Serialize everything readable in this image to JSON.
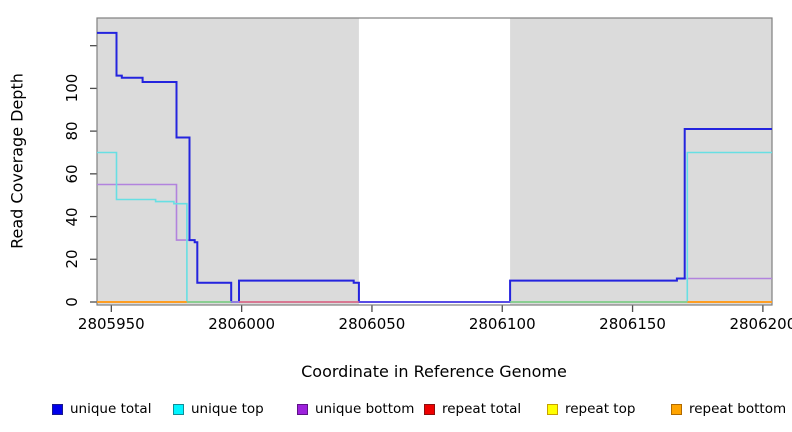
{
  "chart_data": {
    "type": "line",
    "subtype": "step-coverage-plot",
    "title": "",
    "xlabel": "Coordinate in Reference Genome",
    "ylabel": "Read Coverage Depth",
    "xlim": [
      2805944.5,
      2806203.5
    ],
    "ylim": [
      0,
      134
    ],
    "grid": "off",
    "panel_background": "#ffffff",
    "shaded_region_color": "#dbdbdb",
    "box_color": "#7f7f7f",
    "tick_color": "#4d4d4d",
    "x_ticks": [
      {
        "value": 2805950,
        "label": "2805950"
      },
      {
        "value": 2806000,
        "label": "2806000"
      },
      {
        "value": 2806050,
        "label": "2806050"
      },
      {
        "value": 2806100,
        "label": "2806100"
      },
      {
        "value": 2806150,
        "label": "2806150"
      },
      {
        "value": 2806200,
        "label": "2806200"
      }
    ],
    "y_ticks": [
      {
        "value": 0,
        "label": "0"
      },
      {
        "value": 20,
        "label": "20"
      },
      {
        "value": 40,
        "label": "40"
      },
      {
        "value": 60,
        "label": "60"
      },
      {
        "value": 80,
        "label": "80"
      },
      {
        "value": 100,
        "label": "100"
      },
      {
        "value": 120,
        "label": ""
      }
    ],
    "shaded_regions": [
      {
        "from": 2805944.5,
        "to": 2806045
      },
      {
        "from": 2806103,
        "to": 2806203.5
      }
    ],
    "series": [
      {
        "name": "repeat total",
        "color": "#ee0000",
        "width": 1.5,
        "points": [
          [
            2805944.5,
            0
          ],
          [
            2806203.5,
            0
          ]
        ]
      },
      {
        "name": "repeat top",
        "color": "#ffff00",
        "width": 1.5,
        "points": [
          [
            2805944.5,
            0
          ],
          [
            2806203.5,
            0
          ]
        ]
      },
      {
        "name": "repeat bottom",
        "color": "#ffa400",
        "width": 1.5,
        "points": [
          [
            2805944.5,
            0
          ],
          [
            2806203.5,
            0
          ]
        ]
      },
      {
        "name": "unique bottom",
        "color": "#b283dd",
        "width": 1.6,
        "points": [
          [
            2805944.5,
            55
          ],
          [
            2805975,
            29
          ],
          [
            2805982,
            28
          ],
          [
            2805983,
            9
          ],
          [
            2805996,
            0
          ],
          [
            2805999,
            10
          ],
          [
            2806043,
            9
          ],
          [
            2806045,
            0
          ],
          [
            2806103,
            10
          ],
          [
            2806167,
            11
          ],
          [
            2806203.5,
            11
          ]
        ]
      },
      {
        "name": "unique top",
        "color": "#67dfe3",
        "width": 1.6,
        "points": [
          [
            2805944.5,
            70
          ],
          [
            2805952,
            48
          ],
          [
            2805967,
            47
          ],
          [
            2805974,
            46
          ],
          [
            2805979,
            0
          ],
          [
            2806171,
            70
          ],
          [
            2806203.5,
            70
          ]
        ]
      },
      {
        "name": "unique total",
        "color": "#2424de",
        "width": 2,
        "points": [
          [
            2805944.5,
            126
          ],
          [
            2805952,
            106
          ],
          [
            2805954,
            105
          ],
          [
            2805962,
            103
          ],
          [
            2805975,
            77
          ],
          [
            2805980,
            29
          ],
          [
            2805982,
            28
          ],
          [
            2805983,
            9
          ],
          [
            2805996,
            0
          ],
          [
            2805999,
            10
          ],
          [
            2806043,
            9
          ],
          [
            2806045,
            0
          ],
          [
            2806103,
            10
          ],
          [
            2806167,
            11
          ],
          [
            2806170,
            81
          ],
          [
            2806203.5,
            81
          ]
        ]
      }
    ],
    "baseline_overlap_segments": [
      {
        "from": 2805944.5,
        "to": 2805979,
        "value": 0,
        "color": "#ff9d26"
      },
      {
        "from": 2805979,
        "to": 2805996,
        "value": 0,
        "color": "#84cf95"
      },
      {
        "from": 2805996,
        "to": 2805999,
        "value": 0,
        "color": "#9c86e2"
      },
      {
        "from": 2805999,
        "to": 2806045,
        "value": 0,
        "color": "#de6c95"
      },
      {
        "from": 2806045,
        "to": 2806103,
        "value": 0,
        "color": "#6052e6"
      },
      {
        "from": 2806103,
        "to": 2806171,
        "value": 0,
        "color": "#84cf95"
      },
      {
        "from": 2806171,
        "to": 2806203.5,
        "value": 0,
        "color": "#ff9d26"
      }
    ]
  },
  "legend": {
    "items": [
      {
        "label": "unique total",
        "fill": "#0000eb",
        "border": "#1a1a8c"
      },
      {
        "label": "unique top",
        "fill": "#00f5ff",
        "border": "#128c96"
      },
      {
        "label": "unique bottom",
        "fill": "#9d21dc",
        "border": "#5e1286"
      },
      {
        "label": "repeat total",
        "fill": "#ee0000",
        "border": "#8c0f0f"
      },
      {
        "label": "repeat top",
        "fill": "#ffff00",
        "border": "#c8a000"
      },
      {
        "label": "repeat bottom",
        "fill": "#ffa400",
        "border": "#b06a00"
      }
    ]
  }
}
